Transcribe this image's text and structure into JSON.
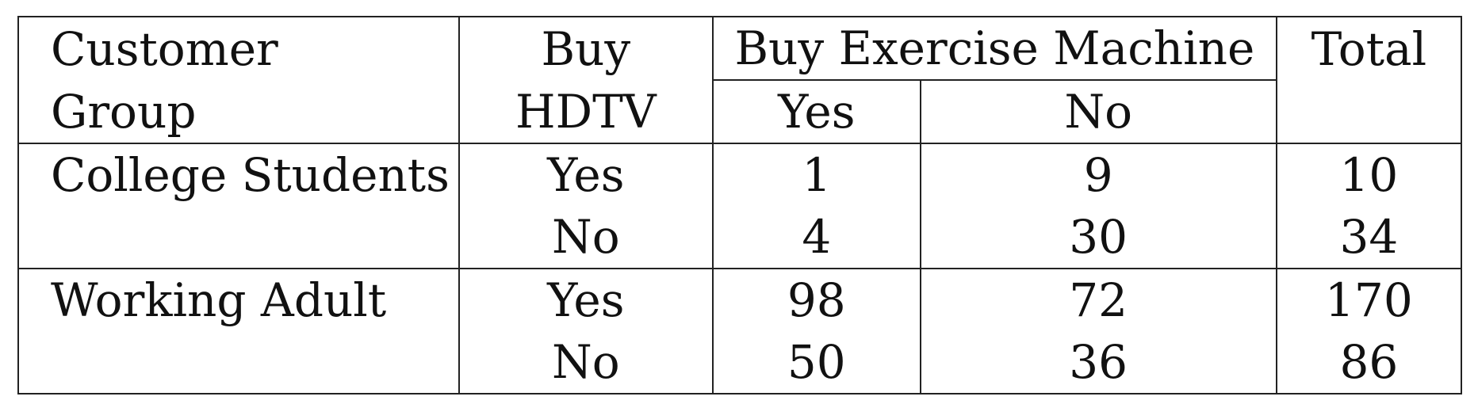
{
  "header": {
    "customer_group_line1": "Customer",
    "customer_group_line2": "Group",
    "buy_hdtv_line1": "Buy",
    "buy_hdtv_line2": "HDTV",
    "buy_exercise_machine": "Buy Exercise Machine",
    "yes": "Yes",
    "no": "No",
    "total": "Total"
  },
  "rows": [
    {
      "group": "College Students",
      "hdtv": "Yes",
      "yes": "1",
      "no": "9",
      "total": "10"
    },
    {
      "group": "",
      "hdtv": "No",
      "yes": "4",
      "no": "30",
      "total": "34"
    },
    {
      "group": "Working Adult",
      "hdtv": "Yes",
      "yes": "98",
      "no": "72",
      "total": "170"
    },
    {
      "group": "",
      "hdtv": "No",
      "yes": "50",
      "no": "36",
      "total": "86"
    }
  ]
}
